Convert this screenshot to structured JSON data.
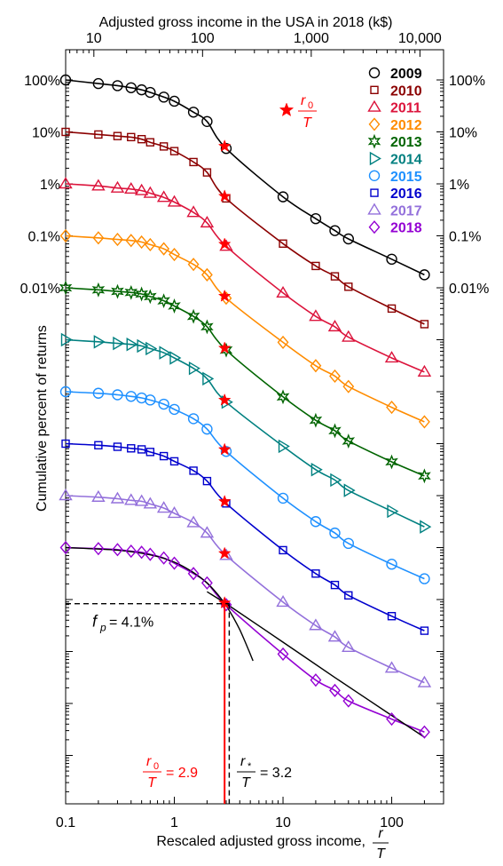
{
  "chart_data": {
    "type": "line",
    "title": "",
    "top_axis_label": "Adjusted gross income in the USA in 2018 (k$)",
    "top_ticks": [
      {
        "value": 10,
        "label": "10"
      },
      {
        "value": 100,
        "label": "100"
      },
      {
        "value": 1000,
        "label": "1,000"
      },
      {
        "value": 10000,
        "label": "10,000"
      }
    ],
    "xlabel": "Rescaled adjusted gross income,",
    "xlabel_frac": {
      "num": "r",
      "den": "T"
    },
    "ylabel": "Cumulative percent of returns",
    "x_scale": "log",
    "xlim": [
      0.1,
      300
    ],
    "bottom_ticks": [
      {
        "value": 0.1,
        "label": "0.1"
      },
      {
        "value": 1,
        "label": "1"
      },
      {
        "value": 10,
        "label": "10"
      },
      {
        "value": 100,
        "label": "100"
      }
    ],
    "y_ticks_left": [
      "100%",
      "10%",
      "1%",
      "0.1%",
      "0.01%"
    ],
    "y_ticks_right": [
      "100%",
      "10%",
      "1%",
      "0.1%",
      "0.01%"
    ],
    "legend_position": "top-right",
    "r0_legend": {
      "num": "r",
      "sub": "0",
      "den": "T"
    },
    "colors": {
      "2009": "#000000",
      "2010": "#8b0000",
      "2011": "#dc143c",
      "2012": "#ff8c00",
      "2013": "#006400",
      "2014": "#008080",
      "2015": "#1e90ff",
      "2016": "#0000cd",
      "2017": "#9370db",
      "2018": "#9400d3",
      "r0": "#ff0000"
    },
    "series": [
      {
        "name": "2009",
        "marker": "circle",
        "x": [
          0.1,
          0.2,
          0.3,
          0.4,
          0.5,
          0.6,
          0.8,
          1,
          1.5,
          2,
          3,
          10,
          20,
          30,
          40,
          100,
          200
        ],
        "y_decades": [
          0,
          -0.07,
          -0.11,
          -0.15,
          -0.19,
          -0.24,
          -0.33,
          -0.41,
          -0.62,
          -0.8,
          -1.32,
          -2.25,
          -2.67,
          -2.9,
          -3.06,
          -3.45,
          -3.75
        ],
        "r0": 2.9
      },
      {
        "name": "2010",
        "marker": "square",
        "x": [
          0.1,
          0.2,
          0.3,
          0.4,
          0.5,
          0.6,
          0.8,
          1,
          1.5,
          2,
          3,
          10,
          20,
          30,
          40,
          100,
          200
        ],
        "y_decades": [
          -1,
          -1.05,
          -1.08,
          -1.1,
          -1.14,
          -1.2,
          -1.28,
          -1.37,
          -1.58,
          -1.78,
          -2.28,
          -3.15,
          -3.58,
          -3.78,
          -3.98,
          -4.4,
          -4.7
        ],
        "r0": 2.9
      },
      {
        "name": "2011",
        "marker": "triangle-up",
        "x": [
          0.1,
          0.2,
          0.3,
          0.4,
          0.5,
          0.6,
          0.8,
          1,
          1.5,
          2,
          3,
          10,
          20,
          30,
          40,
          100,
          200
        ],
        "y_decades": [
          -2,
          -2.04,
          -2.08,
          -2.1,
          -2.13,
          -2.18,
          -2.26,
          -2.35,
          -2.55,
          -2.75,
          -3.2,
          -4.1,
          -4.55,
          -4.75,
          -4.95,
          -5.35,
          -5.62
        ],
        "r0": 2.9
      },
      {
        "name": "2012",
        "marker": "diamond",
        "x": [
          0.1,
          0.2,
          0.3,
          0.4,
          0.5,
          0.6,
          0.8,
          1,
          1.5,
          2,
          3,
          10,
          20,
          30,
          40,
          100,
          200
        ],
        "y_decades": [
          -3,
          -3.04,
          -3.07,
          -3.09,
          -3.12,
          -3.17,
          -3.25,
          -3.36,
          -3.55,
          -3.75,
          -4.2,
          -5.05,
          -5.5,
          -5.7,
          -5.9,
          -6.3,
          -6.58
        ],
        "r0": 2.9
      },
      {
        "name": "2013",
        "marker": "hexagram",
        "x": [
          0.1,
          0.2,
          0.3,
          0.4,
          0.5,
          0.6,
          0.8,
          1,
          1.5,
          2,
          3,
          10,
          20,
          30,
          40,
          100,
          200
        ],
        "y_decades": [
          -4,
          -4.04,
          -4.07,
          -4.09,
          -4.12,
          -4.17,
          -4.25,
          -4.35,
          -4.55,
          -4.75,
          -5.2,
          -6.1,
          -6.55,
          -6.75,
          -6.95,
          -7.35,
          -7.62
        ],
        "r0": 2.9
      },
      {
        "name": "2014",
        "marker": "triangle-right",
        "x": [
          0.1,
          0.2,
          0.3,
          0.4,
          0.5,
          0.6,
          0.8,
          1,
          1.5,
          2,
          3,
          10,
          20,
          30,
          40,
          100,
          200
        ],
        "y_decades": [
          -5,
          -5.04,
          -5.07,
          -5.09,
          -5.12,
          -5.17,
          -5.25,
          -5.35,
          -5.55,
          -5.75,
          -6.2,
          -7.05,
          -7.5,
          -7.7,
          -7.9,
          -8.3,
          -8.6
        ],
        "r0": 2.9
      },
      {
        "name": "2015",
        "marker": "circle",
        "x": [
          0.1,
          0.2,
          0.3,
          0.4,
          0.5,
          0.6,
          0.8,
          1,
          1.5,
          2,
          3,
          10,
          20,
          30,
          40,
          100,
          200
        ],
        "y_decades": [
          -6,
          -6.03,
          -6.06,
          -6.09,
          -6.12,
          -6.16,
          -6.24,
          -6.34,
          -6.52,
          -6.72,
          -7.15,
          -8.05,
          -8.5,
          -8.72,
          -8.92,
          -9.32,
          -9.6
        ],
        "r0": 2.9
      },
      {
        "name": "2016",
        "marker": "square",
        "x": [
          0.1,
          0.2,
          0.3,
          0.4,
          0.5,
          0.6,
          0.8,
          1,
          1.5,
          2,
          3,
          10,
          20,
          30,
          40,
          100,
          200
        ],
        "y_decades": [
          -7,
          -7.03,
          -7.06,
          -7.09,
          -7.11,
          -7.16,
          -7.24,
          -7.34,
          -7.52,
          -7.72,
          -8.15,
          -9.05,
          -9.5,
          -9.72,
          -9.92,
          -10.32,
          -10.6
        ],
        "r0": 2.9
      },
      {
        "name": "2017",
        "marker": "triangle-up",
        "x": [
          0.1,
          0.2,
          0.3,
          0.4,
          0.5,
          0.6,
          0.8,
          1,
          1.5,
          2,
          3,
          10,
          20,
          30,
          40,
          100,
          200
        ],
        "y_decades": [
          -8,
          -8.03,
          -8.06,
          -8.09,
          -8.11,
          -8.16,
          -8.24,
          -8.34,
          -8.52,
          -8.72,
          -9.15,
          -10.05,
          -10.5,
          -10.72,
          -10.92,
          -11.32,
          -11.6
        ],
        "r0": 2.9
      },
      {
        "name": "2018",
        "marker": "diamond",
        "x": [
          0.1,
          0.2,
          0.3,
          0.4,
          0.5,
          0.6,
          0.8,
          1,
          1.5,
          2,
          3,
          10,
          20,
          30,
          40,
          100,
          200
        ],
        "y_decades": [
          -9,
          -9.02,
          -9.04,
          -9.07,
          -9.09,
          -9.13,
          -9.2,
          -9.3,
          -9.5,
          -9.68,
          -10.1,
          -11.05,
          -11.55,
          -11.75,
          -11.95,
          -12.3,
          -12.55
        ],
        "r0": 2.9
      }
    ],
    "asymptote_curves": [
      {
        "kind": "exponential",
        "x": [
          0.1,
          0.3,
          0.6,
          1,
          1.5,
          2,
          2.5,
          3,
          3.5,
          4,
          4.5,
          5.3
        ],
        "y_decades": [
          -9,
          -9.05,
          -9.14,
          -9.28,
          -9.48,
          -9.68,
          -9.9,
          -10.12,
          -10.35,
          -10.58,
          -10.82,
          -11.18
        ]
      },
      {
        "kind": "power-law",
        "x": [
          2,
          3.2,
          10,
          30,
          100,
          200
        ],
        "y_decades": [
          -9.85,
          -10.12,
          -10.82,
          -11.5,
          -12.23,
          -12.65
        ]
      }
    ],
    "annotations": {
      "fp_label_prefix": "f",
      "fp_label_sub": "p",
      "fp_value": "= 4.1%",
      "fp_y_decades": -10.08,
      "r0_label": {
        "num": "r",
        "sub": "0",
        "den": "T",
        "value": "= 2.9",
        "x": 2.9
      },
      "rstar_label": {
        "num": "r",
        "sub": "*",
        "den": "T",
        "value": "= 3.2",
        "x": 3.2
      },
      "vline_bottom_decades": -13.85
    }
  }
}
